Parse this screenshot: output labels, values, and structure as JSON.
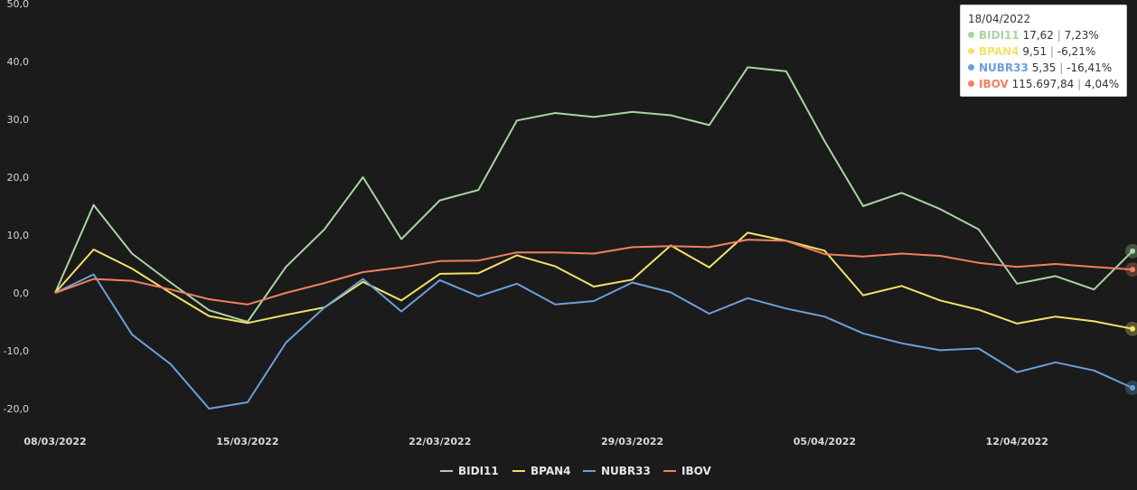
{
  "chart_data": {
    "type": "line",
    "x": [
      "08/03/2022",
      "09/03/2022",
      "10/03/2022",
      "11/03/2022",
      "14/03/2022",
      "15/03/2022",
      "16/03/2022",
      "17/03/2022",
      "18/03/2022",
      "21/03/2022",
      "22/03/2022",
      "23/03/2022",
      "24/03/2022",
      "25/03/2022",
      "28/03/2022",
      "29/03/2022",
      "30/03/2022",
      "31/03/2022",
      "01/04/2022",
      "04/04/2022",
      "05/04/2022",
      "06/04/2022",
      "07/04/2022",
      "08/04/2022",
      "11/04/2022",
      "12/04/2022",
      "13/04/2022",
      "14/04/2022",
      "18/04/2022"
    ],
    "x_tick_labels": [
      "08/03/2022",
      "15/03/2022",
      "22/03/2022",
      "29/03/2022",
      "05/04/2022",
      "12/04/2022"
    ],
    "y_tick_labels": [
      "50,0",
      "40,0",
      "30,0",
      "20,0",
      "10,0",
      "0,0",
      "-10,0",
      "-20,0"
    ],
    "ylim": [
      -20,
      50
    ],
    "grid": false,
    "legend_position": "bottom",
    "series": [
      {
        "name": "BIDI11",
        "color": "#a8d5a2",
        "values": [
          0,
          15.2,
          6.8,
          1.8,
          -3,
          -5,
          4.5,
          11,
          20,
          9.3,
          16,
          17.8,
          29.8,
          31.1,
          30.4,
          31.3,
          30.7,
          29,
          39,
          38.3,
          26.2,
          15,
          17.3,
          14.5,
          11,
          1.6,
          2.9,
          0.6,
          7.23
        ]
      },
      {
        "name": "BPAN4",
        "color": "#f3e16a",
        "values": [
          0,
          7.5,
          4.2,
          0,
          -4,
          -5.2,
          -3.8,
          -2.5,
          1.9,
          -1.3,
          3.3,
          3.4,
          6.5,
          4.6,
          1.1,
          2.3,
          8.2,
          4.4,
          10.4,
          9,
          7.3,
          -0.4,
          1.2,
          -1.3,
          -2.9,
          -5.3,
          -4.1,
          -4.9,
          -6.21
        ]
      },
      {
        "name": "NUBR33",
        "color": "#6d9fd8",
        "values": [
          0,
          3.2,
          -7.2,
          -12.3,
          -20,
          -18.9,
          -8.6,
          -2.5,
          2.4,
          -3.2,
          2.2,
          -0.6,
          1.6,
          -2,
          -1.4,
          1.8,
          0.1,
          -3.6,
          -0.9,
          -2.7,
          -4.1,
          -7,
          -8.7,
          -9.9,
          -9.6,
          -13.7,
          -12,
          -13.4,
          -16.41
        ]
      },
      {
        "name": "IBOV",
        "color": "#f08060",
        "values": [
          0,
          2.4,
          2.1,
          0.6,
          -1.1,
          -2,
          0,
          1.7,
          3.6,
          4.4,
          5.5,
          5.6,
          7,
          7,
          6.8,
          7.9,
          8.1,
          7.9,
          9.2,
          9,
          6.7,
          6.3,
          6.8,
          6.4,
          5.2,
          4.5,
          5,
          4.5,
          4.04
        ]
      }
    ]
  },
  "tooltip": {
    "date": "18/04/2022",
    "rows": [
      {
        "symbol": "BIDI11",
        "color": "#a8d5a2",
        "value": "17,62",
        "change": "7,23%"
      },
      {
        "symbol": "BPAN4",
        "color": "#f3e16a",
        "value": "9,51",
        "change": "-6,21%"
      },
      {
        "symbol": "NUBR33",
        "color": "#6d9fd8",
        "value": "5,35",
        "change": "-16,41%"
      },
      {
        "symbol": "IBOV",
        "color": "#f08060",
        "value": "115.697,84",
        "change": "4,04%"
      }
    ],
    "separator": "|"
  }
}
